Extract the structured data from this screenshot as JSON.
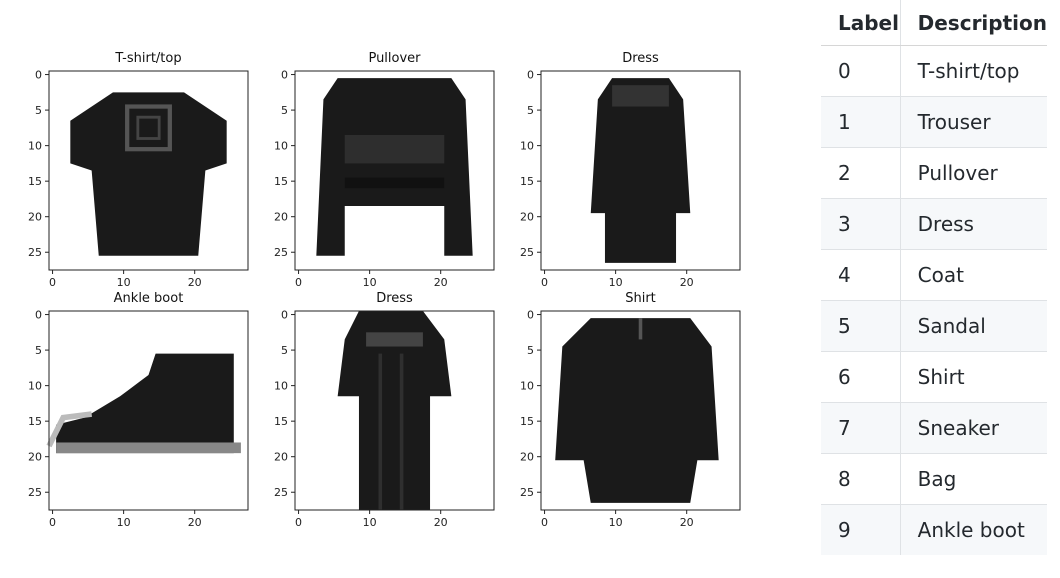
{
  "panels": [
    {
      "title": "T-shirt/top",
      "item": "tshirt"
    },
    {
      "title": "Pullover",
      "item": "pullover"
    },
    {
      "title": "Dress",
      "item": "dress"
    },
    {
      "title": "Ankle boot",
      "item": "boot"
    },
    {
      "title": "Dress",
      "item": "dress2"
    },
    {
      "title": "Shirt",
      "item": "shirt"
    }
  ],
  "axes": {
    "y_ticks": [
      "0",
      "5",
      "10",
      "15",
      "20",
      "25"
    ],
    "x_ticks": [
      "0",
      "10",
      "20"
    ],
    "image_size": 28
  },
  "table": {
    "headers": {
      "label": "Label",
      "description": "Description"
    },
    "rows": [
      {
        "label": "0",
        "description": "T-shirt/top"
      },
      {
        "label": "1",
        "description": "Trouser"
      },
      {
        "label": "2",
        "description": "Pullover"
      },
      {
        "label": "3",
        "description": "Dress"
      },
      {
        "label": "4",
        "description": "Coat"
      },
      {
        "label": "5",
        "description": "Sandal"
      },
      {
        "label": "6",
        "description": "Shirt"
      },
      {
        "label": "7",
        "description": "Sneaker"
      },
      {
        "label": "8",
        "description": "Bag"
      },
      {
        "label": "9",
        "description": "Ankle boot"
      }
    ]
  },
  "colors": {
    "ink": "#1a1a1a",
    "stripe": "#f6f8fa",
    "border": "#dfe2e5"
  }
}
